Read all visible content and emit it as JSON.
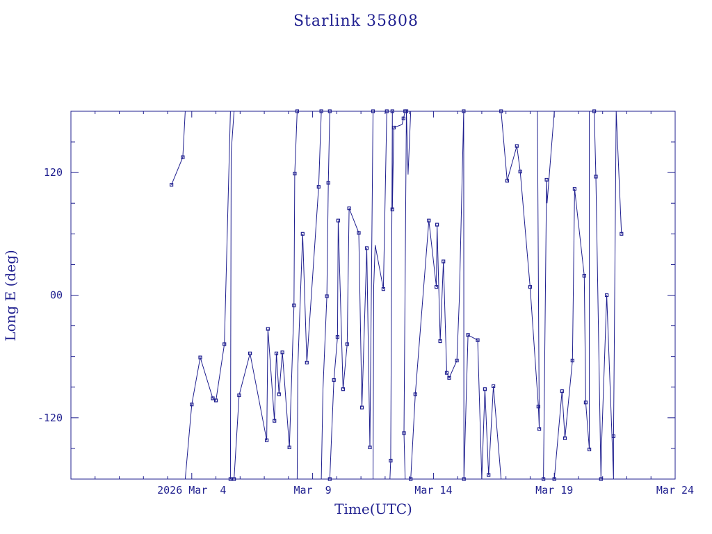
{
  "chart_data": {
    "type": "line",
    "title": "Starlink 35808",
    "xlabel": "Time(UTC)",
    "ylabel": "Long E (deg)",
    "x_unit": "days in March 2026",
    "xlim": [
      -1,
      24
    ],
    "ylim": [
      -180,
      180
    ],
    "x_ticks": [
      {
        "value": 4,
        "label": "2026 Mar  4"
      },
      {
        "value": 9,
        "label": "Mar  9"
      },
      {
        "value": 14,
        "label": "Mar 14"
      },
      {
        "value": 19,
        "label": "Mar 19"
      },
      {
        "value": 24,
        "label": "Mar 24"
      }
    ],
    "y_ticks": [
      {
        "value": 120,
        "label": "120"
      },
      {
        "value": 0,
        "label": "00"
      },
      {
        "value": -120,
        "label": "-120"
      }
    ],
    "grid": false,
    "color": "#1f1f8f",
    "markers": "square",
    "series": [
      {
        "points": [
          [
            3.16,
            108
          ],
          [
            3.63,
            135
          ],
          [
            3.73,
            180
          ],
          [
            3.73,
            -180
          ],
          [
            4.0,
            -107
          ],
          [
            4.35,
            -61
          ],
          [
            4.87,
            -101
          ],
          [
            5.0,
            -103
          ],
          [
            5.35,
            -48
          ],
          [
            5.6,
            180
          ],
          [
            5.6,
            -180
          ],
          [
            5.63,
            140
          ],
          [
            5.75,
            180
          ],
          [
            5.75,
            -180
          ],
          [
            5.96,
            -98
          ],
          [
            6.41,
            -57
          ],
          [
            7.1,
            -142
          ],
          [
            7.15,
            -33
          ],
          [
            7.42,
            -123
          ],
          [
            7.5,
            -57
          ],
          [
            7.61,
            -97
          ],
          [
            7.75,
            -56
          ],
          [
            8.04,
            -149
          ],
          [
            8.23,
            -10
          ],
          [
            8.26,
            119
          ],
          [
            8.36,
            180
          ],
          [
            8.36,
            -180
          ],
          [
            8.39,
            -69
          ],
          [
            8.59,
            60
          ],
          [
            8.76,
            -66
          ],
          [
            9.25,
            106
          ],
          [
            9.36,
            180
          ],
          [
            9.36,
            -180
          ],
          [
            9.43,
            -92
          ],
          [
            9.59,
            -1
          ],
          [
            9.65,
            110
          ],
          [
            9.71,
            180
          ],
          [
            9.71,
            -180
          ],
          [
            9.88,
            -83
          ],
          [
            10.03,
            -41
          ],
          [
            10.06,
            73
          ],
          [
            10.26,
            -92
          ],
          [
            10.43,
            -48
          ],
          [
            10.51,
            85
          ],
          [
            10.91,
            61
          ],
          [
            11.04,
            -110
          ],
          [
            11.24,
            46
          ],
          [
            11.37,
            -149
          ],
          [
            11.5,
            180
          ],
          [
            11.5,
            -180
          ],
          [
            11.53,
            9
          ],
          [
            11.59,
            49
          ],
          [
            11.93,
            6
          ],
          [
            12.07,
            180
          ],
          [
            12.07,
            -180
          ],
          [
            12.2,
            -180
          ],
          [
            12.23,
            -162
          ],
          [
            12.3,
            180
          ],
          [
            12.3,
            84
          ],
          [
            12.36,
            164
          ],
          [
            12.7,
            167
          ],
          [
            12.76,
            173
          ],
          [
            12.83,
            180
          ],
          [
            12.83,
            -180
          ],
          [
            12.78,
            -135
          ],
          [
            12.88,
            180
          ],
          [
            12.95,
            118
          ],
          [
            13.06,
            180
          ],
          [
            13.06,
            -180
          ],
          [
            13.25,
            -97
          ],
          [
            13.81,
            73
          ],
          [
            14.12,
            8
          ],
          [
            14.15,
            69
          ],
          [
            14.28,
            -45
          ],
          [
            14.41,
            33
          ],
          [
            14.55,
            -76
          ],
          [
            14.65,
            -81
          ],
          [
            14.97,
            -64
          ],
          [
            15.07,
            -4
          ],
          [
            15.25,
            180
          ],
          [
            15.25,
            177
          ],
          [
            15.26,
            -180
          ],
          [
            15.43,
            -39
          ],
          [
            15.83,
            -44
          ],
          [
            16.0,
            -180
          ],
          [
            16.13,
            -92
          ],
          [
            16.28,
            -176
          ],
          [
            16.48,
            -89
          ],
          [
            16.8,
            -180
          ],
          [
            16.8,
            180
          ],
          [
            17.05,
            112
          ],
          [
            17.45,
            146
          ],
          [
            17.59,
            121
          ],
          [
            18.0,
            8
          ],
          [
            18.34,
            -109
          ],
          [
            18.38,
            -131
          ],
          [
            18.3,
            180
          ],
          [
            18.48,
            180
          ],
          [
            18.55,
            -180
          ],
          [
            18.68,
            113
          ],
          [
            18.7,
            90
          ],
          [
            19.0,
            180
          ],
          [
            19.0,
            -180
          ],
          [
            19.32,
            -94
          ],
          [
            19.44,
            -140
          ],
          [
            19.75,
            -64
          ],
          [
            19.84,
            104
          ],
          [
            20.24,
            19
          ],
          [
            20.3,
            -105
          ],
          [
            20.45,
            -151
          ],
          [
            20.45,
            180
          ],
          [
            20.65,
            180
          ],
          [
            20.72,
            116
          ],
          [
            20.93,
            -180
          ],
          [
            20.95,
            -150
          ],
          [
            21.17,
            0
          ],
          [
            21.45,
            -180
          ],
          [
            21.45,
            -138
          ],
          [
            21.56,
            180
          ],
          [
            21.78,
            60
          ]
        ],
        "marked_indices": [
          0,
          1,
          4,
          5,
          6,
          7,
          8,
          10,
          13,
          14,
          15,
          16,
          17,
          18,
          19,
          20,
          21,
          22,
          23,
          24,
          25,
          28,
          29,
          30,
          31,
          34,
          35,
          36,
          37,
          38,
          39,
          40,
          41,
          42,
          43,
          44,
          45,
          46,
          47,
          48,
          52,
          53,
          56,
          57,
          58,
          59,
          61,
          62,
          64,
          65,
          68,
          69,
          70,
          71,
          72,
          73,
          74,
          75,
          76,
          77,
          79,
          81,
          82,
          83,
          85,
          86,
          87,
          89,
          90,
          91,
          92,
          93,
          94,
          95,
          98,
          99,
          102,
          103,
          104,
          105,
          106,
          107,
          108,
          109,
          111,
          112,
          113,
          115,
          117,
          119
        ]
      }
    ]
  }
}
